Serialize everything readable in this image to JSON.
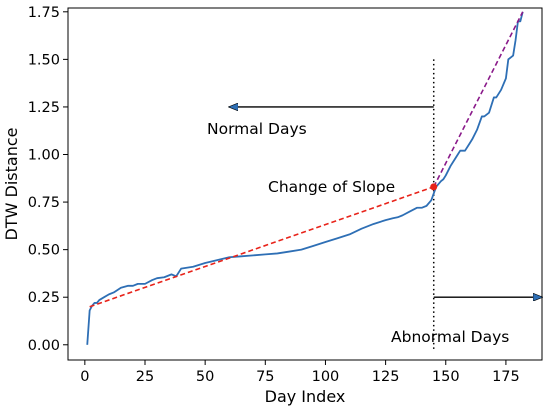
{
  "chart_data": {
    "type": "line",
    "xlabel": "Day Index",
    "ylabel": "DTW Distance",
    "xlim": [
      -7,
      190
    ],
    "ylim": [
      -0.08,
      1.77
    ],
    "xticks": [
      0,
      25,
      50,
      75,
      100,
      125,
      150,
      175
    ],
    "yticks": [
      0.0,
      0.25,
      0.5,
      0.75,
      1.0,
      1.25,
      1.5,
      1.75
    ],
    "ytick_labels": [
      "0.00",
      "0.25",
      "0.50",
      "0.75",
      "1.00",
      "1.25",
      "1.50",
      "1.75"
    ],
    "grid": false,
    "series": [
      {
        "color": "#2e6fb5",
        "x": [
          1,
          2,
          3,
          4,
          5,
          6,
          8,
          10,
          12,
          15,
          18,
          20,
          22,
          25,
          28,
          30,
          33,
          36,
          38,
          40,
          45,
          50,
          55,
          60,
          65,
          70,
          75,
          80,
          85,
          90,
          95,
          100,
          105,
          110,
          115,
          120,
          125,
          128,
          130,
          132,
          135,
          138,
          140,
          142,
          144,
          146,
          148,
          149,
          150,
          152,
          153,
          155,
          156,
          158,
          160,
          161,
          163,
          165,
          166,
          168,
          170,
          171,
          173,
          175,
          176,
          178,
          179,
          180,
          181,
          182
        ],
        "y": [
          0.0,
          0.18,
          0.205,
          0.22,
          0.22,
          0.235,
          0.25,
          0.265,
          0.275,
          0.3,
          0.31,
          0.31,
          0.32,
          0.32,
          0.34,
          0.35,
          0.355,
          0.37,
          0.36,
          0.4,
          0.41,
          0.43,
          0.445,
          0.46,
          0.465,
          0.47,
          0.475,
          0.48,
          0.49,
          0.5,
          0.52,
          0.54,
          0.56,
          0.58,
          0.61,
          0.635,
          0.655,
          0.665,
          0.67,
          0.68,
          0.7,
          0.72,
          0.72,
          0.73,
          0.76,
          0.83,
          0.86,
          0.87,
          0.89,
          0.94,
          0.96,
          1.0,
          1.02,
          1.02,
          1.06,
          1.08,
          1.13,
          1.2,
          1.2,
          1.22,
          1.3,
          1.3,
          1.34,
          1.4,
          1.5,
          1.52,
          1.6,
          1.7,
          1.7,
          1.75
        ]
      },
      {
        "color": "#e8231a",
        "style": "dashed",
        "x": [
          2,
          145
        ],
        "y": [
          0.2,
          0.83
        ]
      },
      {
        "color": "#8a1a8a",
        "style": "dashed",
        "x": [
          145,
          182
        ],
        "y": [
          0.83,
          1.75
        ]
      }
    ],
    "markers": [
      {
        "x": 145,
        "y": 0.83,
        "color": "#e8231a"
      }
    ],
    "vline": {
      "x": 145,
      "y_range": [
        -0.03,
        1.5
      ],
      "style": "dotted"
    },
    "annotations": [
      {
        "text": "Change of Slope"
      },
      {
        "text": "Normal Days",
        "arrow_from": [
          145,
          1.25
        ],
        "arrow_to": [
          60,
          1.25
        ]
      },
      {
        "text": "Abnormal Days",
        "arrow_from": [
          145,
          0.25
        ],
        "arrow_to": [
          190,
          0.25
        ]
      }
    ]
  }
}
